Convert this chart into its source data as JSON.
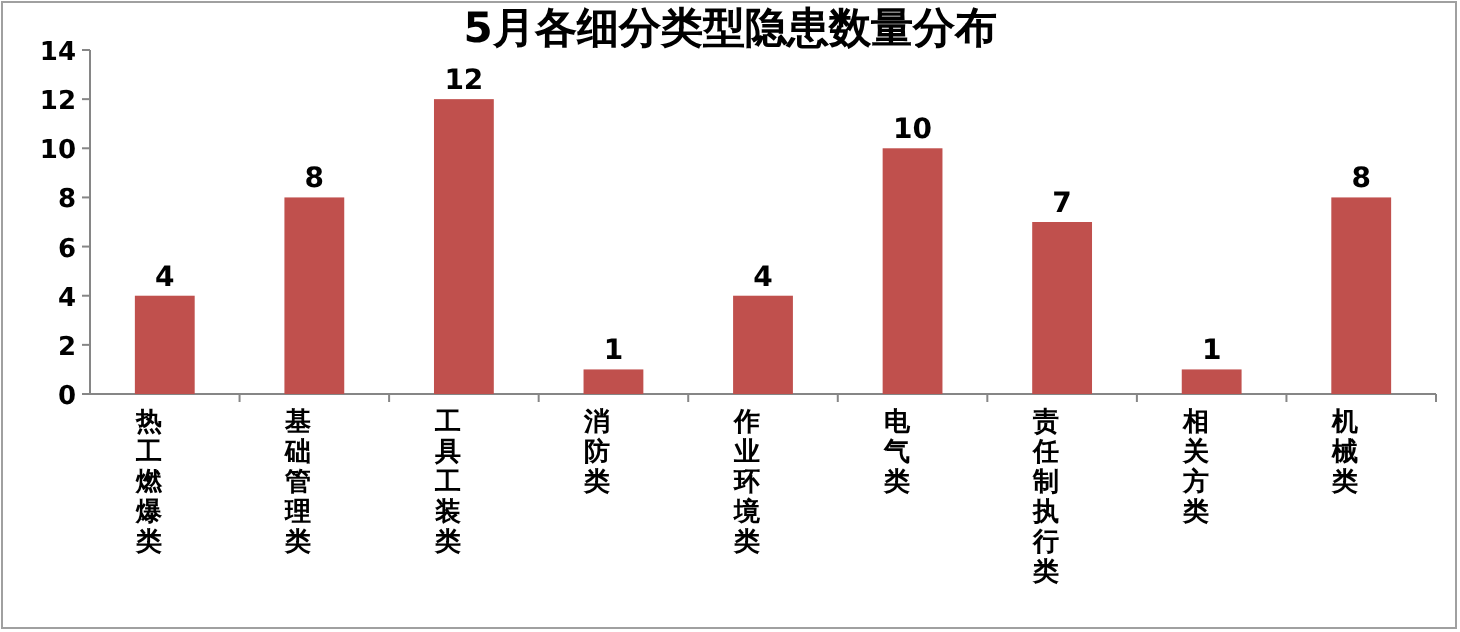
{
  "chart_data": {
    "type": "bar",
    "title": "5月各细分类型隐患数量分布",
    "categories": [
      "热工燃爆类",
      "基础管理类",
      "工具工装类",
      "消防类",
      "作业环境类",
      "电气类",
      "责任制执行类",
      "相关方类",
      "机械类"
    ],
    "values": [
      4,
      8,
      12,
      1,
      4,
      10,
      7,
      1,
      8
    ],
    "color": "#c0504d",
    "ylim": [
      0,
      14
    ],
    "yticks": [
      0,
      2,
      4,
      6,
      8,
      10,
      12,
      14
    ],
    "data_labels": true,
    "grid": false
  }
}
